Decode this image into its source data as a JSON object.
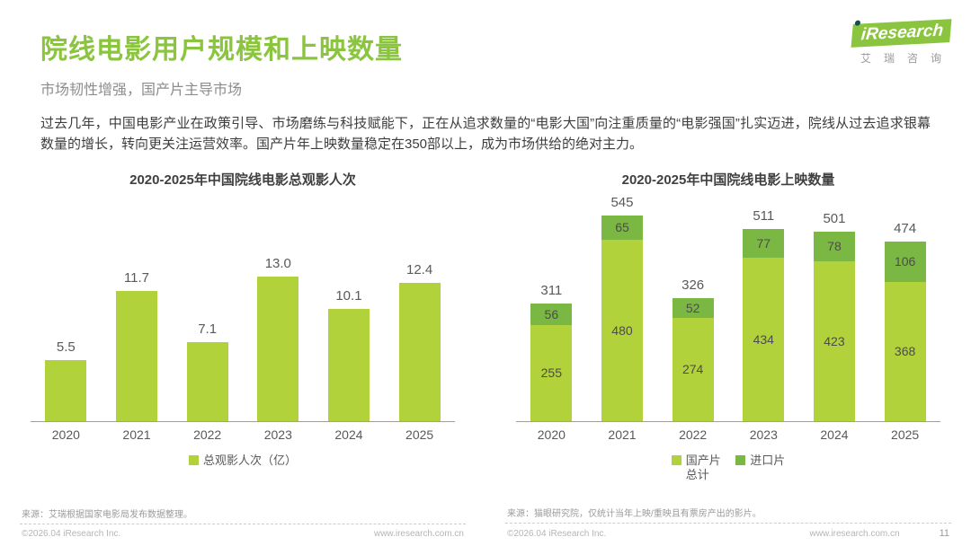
{
  "header": {
    "title": "院线电影用户规模和上映数量",
    "subtitle": "市场韧性增强，国产片主导市场"
  },
  "logo": {
    "brand": "iResearch",
    "brand_cn": "艾瑞咨询"
  },
  "intro": "过去几年，中国电影产业在政策引导、市场磨练与科技赋能下，正在从追求数量的“电影大国”向注重质量的“电影强国”扎实迈进，院线从过去追求银幕数量的增长，转向更关注运营效率。国产片年上映数量稳定在350部以上，成为市场供给的绝对主力。",
  "colors": {
    "accent_green": "#8bc53f",
    "bar_light_green": "#b1d23a",
    "bar_dark_green": "#7bb843"
  },
  "chart_data": [
    {
      "type": "bar",
      "title": "2020-2025年中国院线电影总观影人次",
      "categories": [
        "2020",
        "2021",
        "2022",
        "2023",
        "2024",
        "2025"
      ],
      "values": [
        5.5,
        11.7,
        7.1,
        13.0,
        10.1,
        12.4
      ],
      "values_display": [
        "5.5",
        "11.7",
        "7.1",
        "13.0",
        "10.1",
        "12.4"
      ],
      "color": "#b1d23a",
      "ylim": [
        0,
        14
      ],
      "grid": false,
      "legend_position": "bottom",
      "legend": [
        {
          "label": "总观影人次（亿）",
          "color": "#b1d23a"
        }
      ],
      "source": "来源：艾瑞根据国家电影局发布数据整理。"
    },
    {
      "type": "bar",
      "stacked": true,
      "title": "2020-2025年中国院线电影上映数量",
      "categories": [
        "2020",
        "2021",
        "2022",
        "2023",
        "2024",
        "2025"
      ],
      "series": [
        {
          "name": "国产片总计",
          "color": "#b1d23a",
          "values": [
            255,
            480,
            274,
            434,
            423,
            368
          ]
        },
        {
          "name": "进口片",
          "color": "#7bb843",
          "values": [
            56,
            65,
            52,
            77,
            78,
            106
          ]
        }
      ],
      "totals": [
        311,
        545,
        326,
        511,
        501,
        474
      ],
      "ylim": [
        0,
        580
      ],
      "grid": false,
      "legend_position": "bottom",
      "legend": [
        {
          "label": "国产片总计",
          "color": "#b1d23a",
          "wrap": true
        },
        {
          "label": "进口片",
          "color": "#7bb843"
        }
      ],
      "source": "来源：猫眼研究院，仅统计当年上映/重映且有票房产出的影片。"
    }
  ],
  "footer": {
    "copyright": "©2026.04 iResearch Inc.",
    "website": "www.iresearch.com.cn",
    "page_number": "11"
  }
}
